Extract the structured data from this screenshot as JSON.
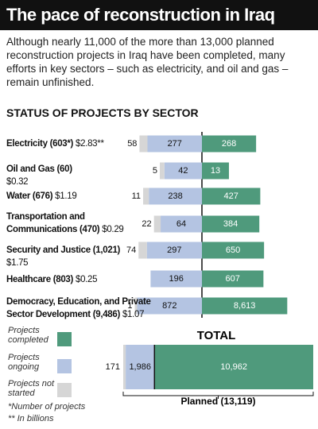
{
  "title": "The pace of reconstruction in Iraq",
  "intro": "Although nearly 11,000 of the more than 13,000 planned reconstruction projects in Iraq have been completed, many efforts in key sectors – such as electricity, and oil and gas – remain unfinished.",
  "chart_data": {
    "type": "bar",
    "subtitle": "STATUS OF PROJECTS BY SECTOR",
    "categories": [
      "Electricity (603*)",
      "Oil and Gas (60)",
      "Water (676)",
      "Transportation and Communications (470)",
      "Security and Justice (1,021)",
      "Healthcare (803)",
      "Democracy, Education, and Private Sector Development (9,486)"
    ],
    "category_amounts": [
      "$2.83**",
      "$0.32",
      "$1.19",
      "$0.29",
      "$1.75",
      "$0.25",
      "$1.07"
    ],
    "series": [
      {
        "name": "Projects not started",
        "color": "#d6d6d6",
        "values": [
          58,
          5,
          11,
          22,
          74,
          null,
          1
        ]
      },
      {
        "name": "Projects ongoing",
        "color": "#b4c4e2",
        "values": [
          277,
          42,
          238,
          64,
          297,
          196,
          872
        ]
      },
      {
        "name": "Projects completed",
        "color": "#4f9a7c",
        "values": [
          268,
          13,
          427,
          384,
          650,
          607,
          8613
        ],
        "value_labels": [
          "268",
          "13",
          "427",
          "384",
          "650",
          "607",
          "8,613"
        ]
      }
    ],
    "total": {
      "title": "TOTAL",
      "values": [
        171,
        1986,
        10962
      ],
      "value_labels": [
        "171",
        "1,986",
        "10,962"
      ],
      "label": "Planned (13,119)"
    },
    "footnotes": [
      "*Number of projects",
      "** In billions"
    ]
  }
}
